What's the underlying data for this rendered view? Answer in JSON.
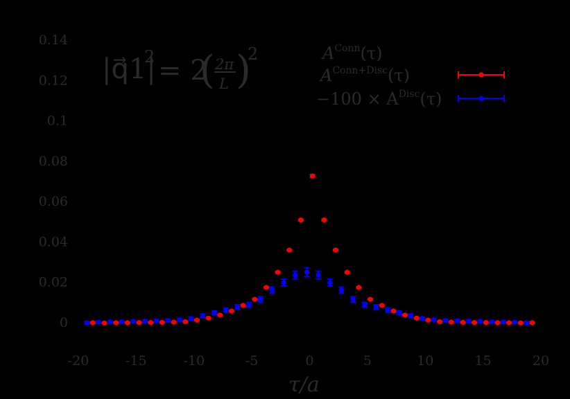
{
  "chart_data": {
    "type": "scatter",
    "title": "",
    "annotation": "|q1|^2 = 2 (2π/L)^2",
    "annotation_parts": {
      "lhs": "|q⃗1|",
      "lhs_exp": "2",
      "eq": "= 2",
      "frac_num": "2π",
      "frac_den": "L",
      "rhs_exp": "2"
    },
    "xlabel": "τ/a",
    "ylabel": "",
    "xlim": [
      -20,
      20
    ],
    "ylim": [
      -0.01,
      0.14
    ],
    "xticks": [
      -20,
      -15,
      -10,
      -5,
      0,
      5,
      10,
      15,
      20
    ],
    "xtick_labels": [
      "-20",
      "-15",
      "-10",
      "-5",
      "0",
      "5",
      "10",
      "15",
      "20"
    ],
    "yticks": [
      0,
      0.02,
      0.04,
      0.06,
      0.08,
      0.1,
      0.12,
      0.14
    ],
    "ytick_labels": [
      "0",
      "0.02",
      "0.04",
      "0.06",
      "0.08",
      "0.1",
      "0.12",
      "0.14"
    ],
    "grid": false,
    "legend_position": "upper right",
    "x": [
      -19,
      -18,
      -17,
      -16,
      -15,
      -14,
      -13,
      -12,
      -11,
      -10,
      -9,
      -8,
      -7,
      -6,
      -5,
      -4,
      -3,
      -2,
      -1,
      0,
      1,
      2,
      3,
      4,
      5,
      6,
      7,
      8,
      9,
      10,
      11,
      12,
      13,
      14,
      15,
      16,
      17,
      18,
      19
    ],
    "series": [
      {
        "name": "A^Conn(τ)",
        "label_base": "A",
        "label_sup": "Conn",
        "label_tail": "(τ)",
        "color": "#000000",
        "values": [],
        "errors": []
      },
      {
        "name": "A^Conn+Disc(τ)",
        "label_base": "A",
        "label_sup": "Conn+Disc",
        "label_tail": "(τ)",
        "color": "#ff0000",
        "offset": 0.25,
        "values": [
          -0.0003,
          -0.0004,
          -0.0003,
          -0.0003,
          -0.0002,
          -0.0002,
          -0.0001,
          0.0,
          0.0002,
          0.001,
          0.002,
          0.0035,
          0.0055,
          0.0083,
          0.0113,
          0.0172,
          0.0247,
          0.0357,
          0.0506,
          0.0724,
          0.0506,
          0.0357,
          0.0247,
          0.0172,
          0.0113,
          0.0083,
          0.0055,
          0.0035,
          0.002,
          0.001,
          0.0002,
          0.0,
          -0.0001,
          -0.0002,
          -0.0002,
          -0.0003,
          -0.0003,
          -0.0004,
          -0.0003
        ],
        "errors": [
          0.0004,
          0.0003,
          0.0003,
          0.0003,
          0.0003,
          0.0003,
          0.0003,
          0.0003,
          0.0003,
          0.0003,
          0.0003,
          0.0003,
          0.0003,
          0.0003,
          0.0003,
          0.0003,
          0.0003,
          0.0003,
          0.0004,
          0.0006,
          0.0004,
          0.0003,
          0.0003,
          0.0003,
          0.0003,
          0.0003,
          0.0003,
          0.0003,
          0.0003,
          0.0003,
          0.0003,
          0.0003,
          0.0003,
          0.0003,
          0.0003,
          0.0003,
          0.0003,
          0.0003,
          0.0004
        ]
      },
      {
        "name": "-100 × A^Disc(τ)",
        "label_base": "−100 × A",
        "label_sup": "Disc",
        "label_tail": "(τ)",
        "color": "#0000ff",
        "offset": -0.25,
        "values": [
          -0.0003,
          0.0,
          0.0001,
          0.0002,
          0.0004,
          0.0005,
          0.0006,
          0.0008,
          0.0012,
          0.0018,
          0.0032,
          0.0047,
          0.006,
          0.0075,
          0.0086,
          0.0113,
          0.0158,
          0.0196,
          0.0233,
          0.0247,
          0.0233,
          0.0196,
          0.0158,
          0.0113,
          0.0086,
          0.0075,
          0.006,
          0.0047,
          0.0032,
          0.0018,
          0.0012,
          0.0008,
          0.0006,
          0.0005,
          0.0004,
          0.0002,
          0.0001,
          0.0,
          -0.0003
        ],
        "errors": [
          0.0006,
          0.0005,
          0.0005,
          0.0005,
          0.0005,
          0.0006,
          0.0006,
          0.0006,
          0.0006,
          0.0007,
          0.0008,
          0.0009,
          0.001,
          0.0011,
          0.0012,
          0.0013,
          0.0015,
          0.0017,
          0.0019,
          0.0022,
          0.0019,
          0.0017,
          0.0015,
          0.0013,
          0.0012,
          0.0011,
          0.001,
          0.0009,
          0.0008,
          0.0007,
          0.0006,
          0.0006,
          0.0006,
          0.0006,
          0.0005,
          0.0005,
          0.0005,
          0.0005,
          0.0006
        ]
      }
    ]
  }
}
